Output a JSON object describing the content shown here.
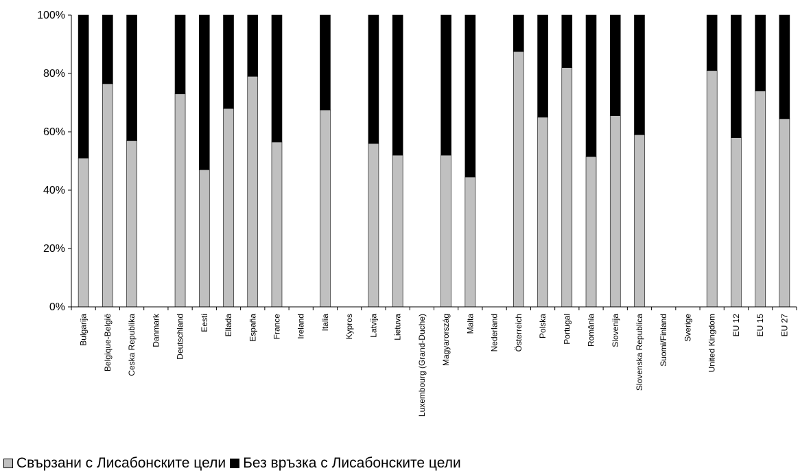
{
  "chart_data": {
    "type": "bar",
    "stacked": true,
    "categories": [
      "Bulgarija",
      "Belgique-België",
      "Ceska Republika",
      "Danmark",
      "Deutschland",
      "Eesti",
      "Ellada",
      "España",
      "France",
      "Ireland",
      "Italia",
      "Kypros",
      "Latvija",
      "Lietuva",
      "Luxembourg (Grand-Duche)",
      "Magyarország",
      "Malta",
      "Nederland",
      "Österreich",
      "Polska",
      "Portugal",
      "România",
      "Slovenija",
      "Slovenska Republica",
      "Suomi/Finland",
      "Sverige",
      "United Kingdom",
      "EU  12",
      "EU  15",
      "EU  27"
    ],
    "series": [
      {
        "name": "Свързани с Лисабонските цели",
        "color": "#c0c0c0",
        "values": [
          51,
          76.5,
          57,
          null,
          73,
          47,
          68,
          79,
          56.5,
          null,
          67.5,
          null,
          56,
          52,
          null,
          52,
          44.5,
          null,
          87.5,
          65,
          82,
          51.5,
          65.5,
          59,
          null,
          null,
          81,
          58,
          74,
          64.5
        ]
      },
      {
        "name": "Без връзка с Лисабонските цели",
        "color": "#000000",
        "values": [
          49,
          23.5,
          43,
          null,
          27,
          53,
          32,
          21,
          43.5,
          null,
          32.5,
          null,
          44,
          48,
          null,
          48,
          55.5,
          null,
          12.5,
          35,
          18,
          48.5,
          34.5,
          41,
          null,
          null,
          19,
          42,
          26,
          35.5
        ]
      }
    ],
    "yticks": [
      "0%",
      "20%",
      "40%",
      "60%",
      "80%",
      "100%"
    ],
    "ylim": [
      0,
      100
    ],
    "title": "",
    "xlabel": "",
    "ylabel": "",
    "legend": "bottom-left",
    "grid": false
  }
}
